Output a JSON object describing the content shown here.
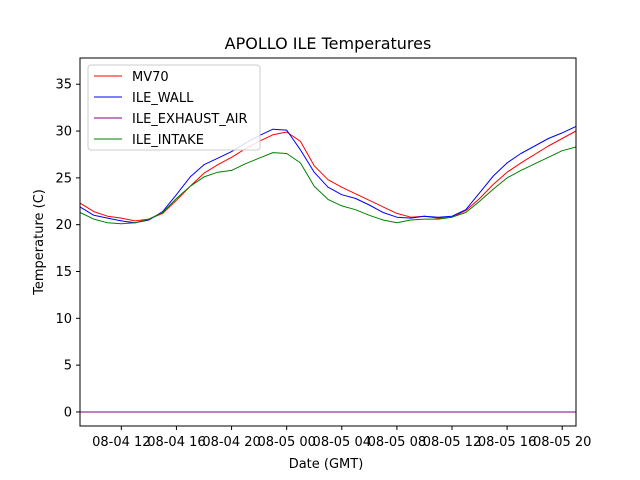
{
  "chart_data": {
    "type": "line",
    "title": "APOLLO ILE Temperatures",
    "xlabel": "Date (GMT)",
    "ylabel": "Temperature (C)",
    "xlim": [
      9.0,
      45.0
    ],
    "ylim": [
      -1.5,
      37.8
    ],
    "yticks": [
      0,
      5,
      10,
      15,
      20,
      25,
      30,
      35
    ],
    "ytick_labels": [
      "0",
      "5",
      "10",
      "15",
      "20",
      "25",
      "30",
      "35"
    ],
    "xticks": [
      12,
      16,
      20,
      24,
      28,
      32,
      36,
      40,
      44
    ],
    "xtick_labels": [
      "08-04 12",
      "08-04 16",
      "08-04 20",
      "08-05 00",
      "08-05 04",
      "08-05 08",
      "08-05 12",
      "08-05 16",
      "08-05 20"
    ],
    "grid": false,
    "legend_position": "top-left",
    "series": [
      {
        "name": "MV70",
        "color": "#ff0000",
        "x": [
          9,
          10,
          11,
          12,
          13,
          14,
          15,
          16,
          17,
          18,
          19,
          20,
          21,
          22,
          23,
          24,
          25,
          26,
          27,
          28,
          29,
          30,
          31,
          32,
          33,
          34,
          35,
          36,
          37,
          38,
          39,
          40,
          41,
          42,
          43,
          44,
          45
        ],
        "y": [
          22.3,
          21.4,
          20.9,
          20.7,
          20.4,
          20.6,
          21.2,
          22.6,
          24.1,
          25.5,
          26.4,
          27.2,
          28.1,
          28.9,
          29.6,
          29.9,
          28.9,
          26.3,
          24.8,
          24.0,
          23.3,
          22.6,
          21.9,
          21.2,
          20.8,
          20.9,
          20.7,
          20.8,
          21.5,
          22.8,
          24.3,
          25.6,
          26.6,
          27.5,
          28.4,
          29.2,
          30.0
        ]
      },
      {
        "name": "ILE_WALL",
        "color": "#0000ff",
        "x": [
          9,
          10,
          11,
          12,
          13,
          14,
          15,
          16,
          17,
          18,
          19,
          20,
          21,
          22,
          23,
          24,
          25,
          26,
          27,
          28,
          29,
          30,
          31,
          32,
          33,
          34,
          35,
          36,
          37,
          38,
          39,
          40,
          41,
          42,
          43,
          44,
          45
        ],
        "y": [
          21.9,
          21.0,
          20.7,
          20.4,
          20.2,
          20.5,
          21.4,
          23.2,
          25.1,
          26.4,
          27.1,
          27.8,
          28.7,
          29.5,
          30.2,
          30.1,
          28.0,
          25.6,
          24.0,
          23.2,
          22.8,
          22.1,
          21.3,
          20.8,
          20.7,
          20.9,
          20.8,
          20.9,
          21.6,
          23.4,
          25.2,
          26.6,
          27.6,
          28.4,
          29.2,
          29.8,
          30.5
        ]
      },
      {
        "name": "ILE_EXHAUST_AIR",
        "color": "#800080",
        "x": [
          9,
          45
        ],
        "y": [
          0,
          0
        ]
      },
      {
        "name": "ILE_INTAKE",
        "color": "#008000",
        "x": [
          9,
          10,
          11,
          12,
          13,
          14,
          15,
          16,
          17,
          18,
          19,
          20,
          21,
          22,
          23,
          24,
          25,
          26,
          27,
          28,
          29,
          30,
          31,
          32,
          33,
          34,
          35,
          36,
          37,
          38,
          39,
          40,
          41,
          42,
          43,
          44,
          45
        ],
        "y": [
          21.3,
          20.6,
          20.2,
          20.1,
          20.2,
          20.6,
          21.3,
          22.8,
          24.1,
          25.1,
          25.6,
          25.8,
          26.5,
          27.1,
          27.7,
          27.6,
          26.6,
          24.1,
          22.7,
          22.0,
          21.6,
          21.0,
          20.5,
          20.2,
          20.5,
          20.6,
          20.6,
          20.8,
          21.3,
          22.5,
          23.8,
          25.0,
          25.8,
          26.5,
          27.2,
          27.9,
          28.3
        ]
      }
    ]
  }
}
